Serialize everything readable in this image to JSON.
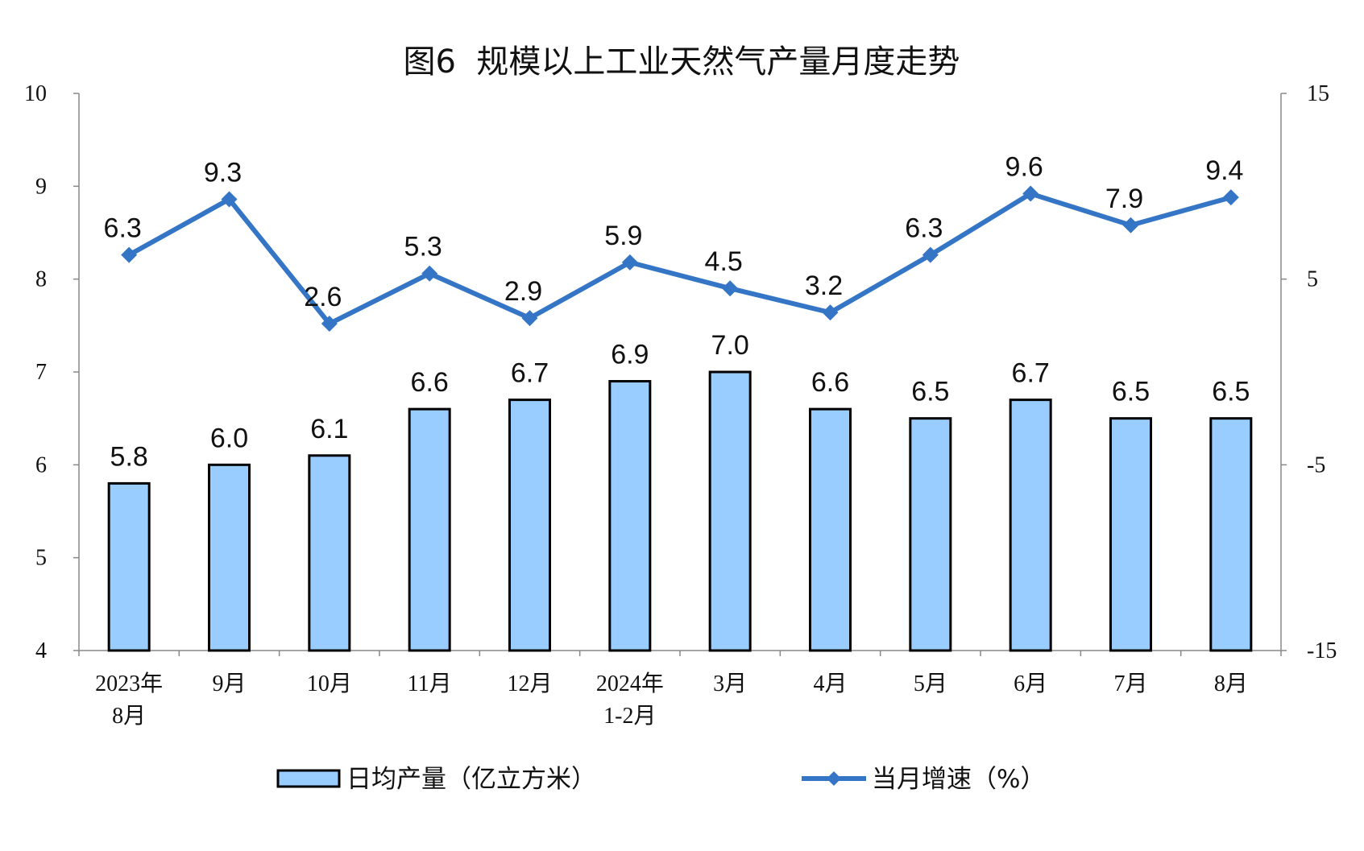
{
  "chart_data": {
    "type": "bar+line",
    "title": "图6  规模以上工业天然气产量月度走势",
    "categories": [
      [
        "2023年",
        "8月"
      ],
      [
        "9月"
      ],
      [
        "10月"
      ],
      [
        "11月"
      ],
      [
        "12月"
      ],
      [
        "2024年",
        "1-2月"
      ],
      [
        "3月"
      ],
      [
        "4月"
      ],
      [
        "5月"
      ],
      [
        "6月"
      ],
      [
        "7月"
      ],
      [
        "8月"
      ]
    ],
    "series": [
      {
        "name": "日均产量（亿立方米）",
        "type": "bar",
        "axis": "left",
        "values": [
          5.8,
          6.0,
          6.1,
          6.6,
          6.7,
          6.9,
          7.0,
          6.6,
          6.5,
          6.7,
          6.5,
          6.5
        ],
        "color": "#99CCFF",
        "labels": [
          "5.8",
          "6.0",
          "6.1",
          "6.6",
          "6.7",
          "6.9",
          "7.0",
          "6.6",
          "6.5",
          "6.7",
          "6.5",
          "6.5"
        ]
      },
      {
        "name": "当月增速（%）",
        "type": "line",
        "axis": "right",
        "values": [
          6.3,
          9.3,
          2.6,
          5.3,
          2.9,
          5.9,
          4.5,
          3.2,
          6.3,
          9.6,
          7.9,
          9.4
        ],
        "color": "#3575C6",
        "labels": [
          "6.3",
          "9.3",
          "2.6",
          "5.3",
          "2.9",
          "5.9",
          "4.5",
          "3.2",
          "6.3",
          "9.6",
          "7.9",
          "9.4"
        ]
      }
    ],
    "left_axis": {
      "ylim": [
        4,
        10
      ],
      "ticks": [
        "4",
        "5",
        "6",
        "7",
        "8",
        "9",
        "10"
      ]
    },
    "right_axis": {
      "ylim": [
        -15,
        15
      ],
      "ticks": [
        "-15",
        "-5",
        "5",
        "15"
      ]
    },
    "grid": false,
    "legend": "bottom"
  }
}
